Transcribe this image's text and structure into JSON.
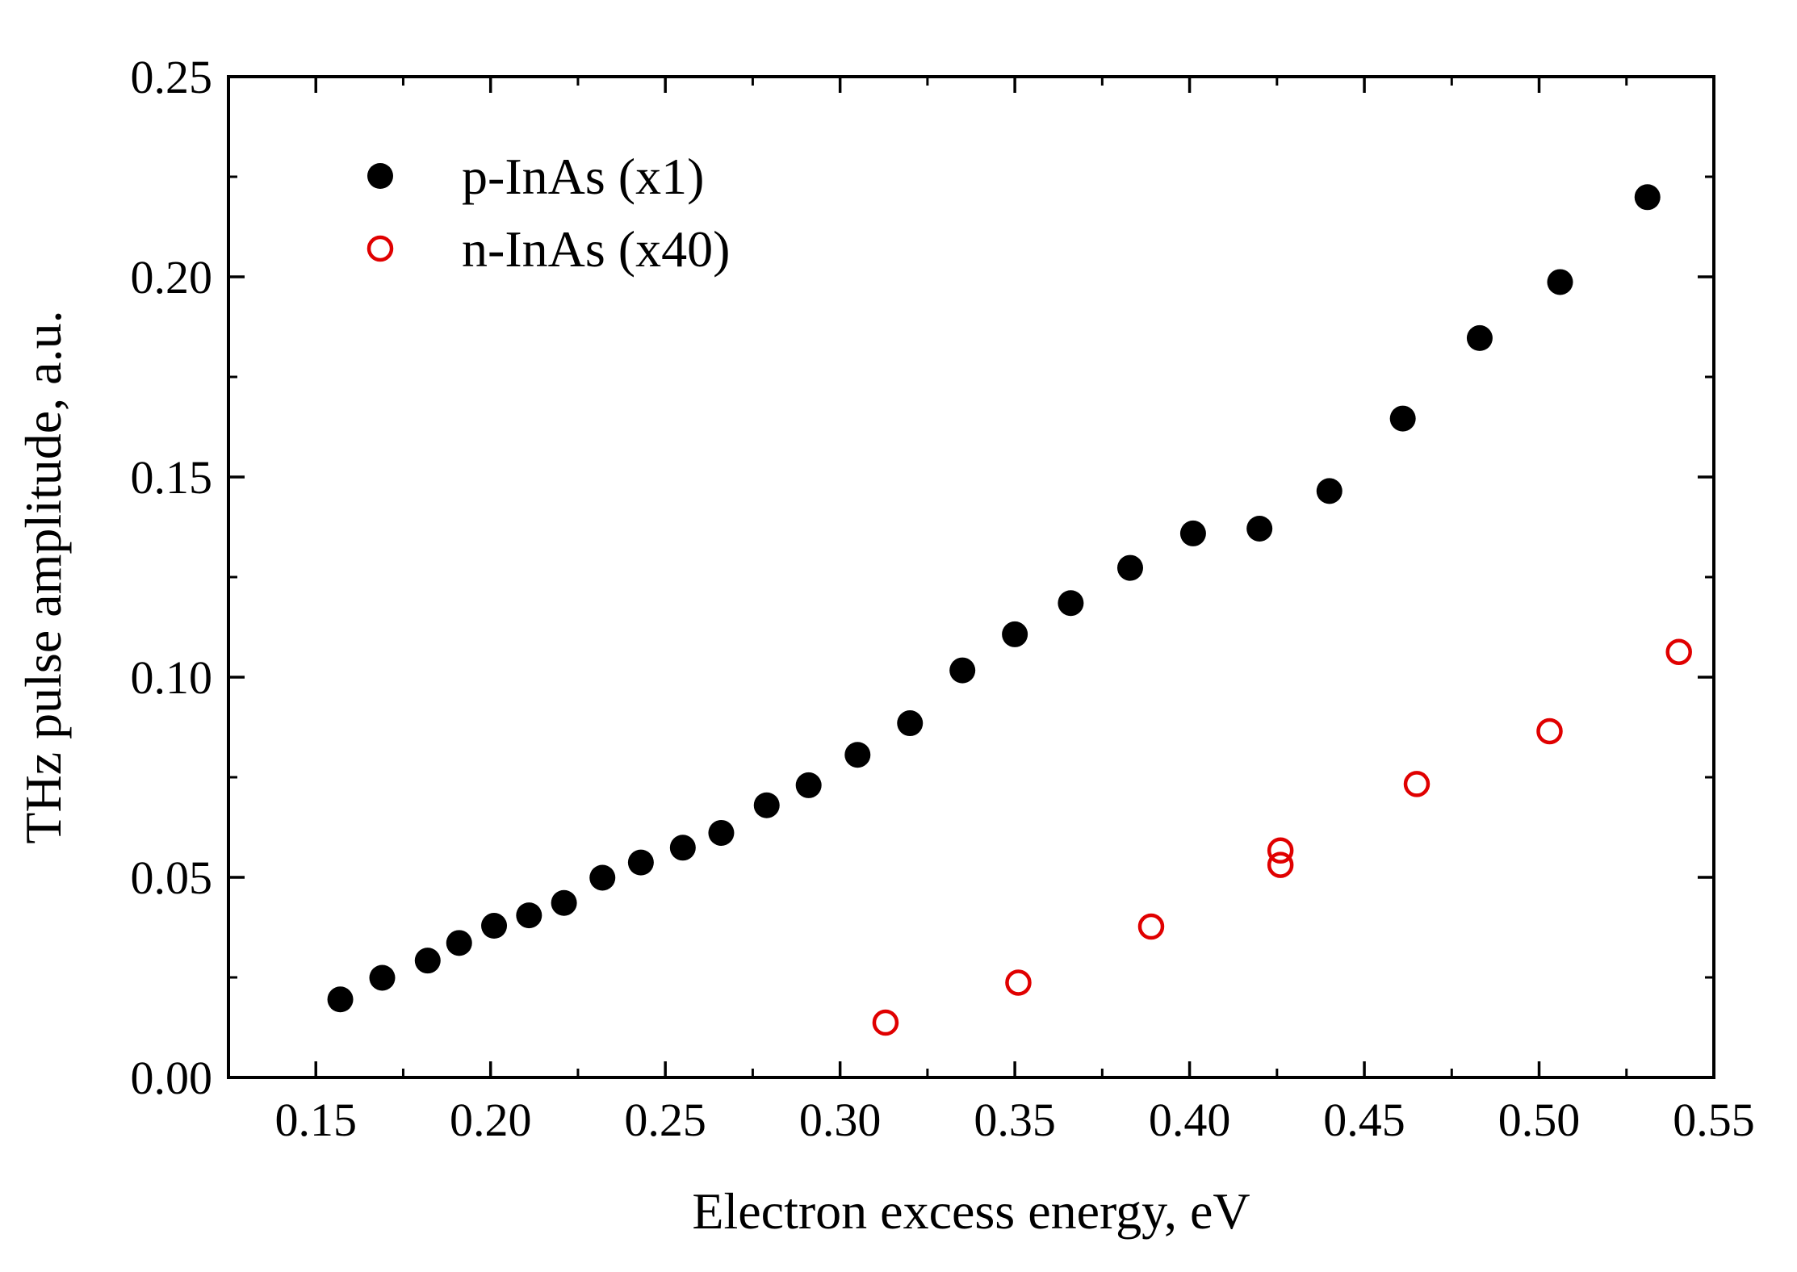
{
  "chart_data": {
    "type": "scatter",
    "xlabel": "Electron excess energy, eV",
    "ylabel": "THz pulse amplitude, a.u.",
    "xlim": [
      0.125,
      0.55
    ],
    "ylim": [
      0.0,
      0.25
    ],
    "xticks": [
      "0.15",
      "0.20",
      "0.25",
      "0.30",
      "0.35",
      "0.40",
      "0.45",
      "0.50",
      "0.55"
    ],
    "xtick_values": [
      0.15,
      0.2,
      0.25,
      0.3,
      0.35,
      0.4,
      0.45,
      0.5,
      0.55
    ],
    "yticks": [
      "0.00",
      "0.05",
      "0.10",
      "0.15",
      "0.20",
      "0.25"
    ],
    "ytick_values": [
      0.0,
      0.05,
      0.1,
      0.15,
      0.2,
      0.25
    ],
    "grid": false,
    "legend_position": "top-left",
    "series": [
      {
        "name": "p-InAs (x1)",
        "color": "#000000",
        "marker": "filled-circle",
        "x": [
          0.157,
          0.169,
          0.182,
          0.191,
          0.201,
          0.211,
          0.221,
          0.232,
          0.243,
          0.255,
          0.266,
          0.279,
          0.291,
          0.305,
          0.32,
          0.335,
          0.35,
          0.366,
          0.383,
          0.401,
          0.42,
          0.44,
          0.461,
          0.483,
          0.506,
          0.531
        ],
        "y": [
          0.0195,
          0.0249,
          0.0292,
          0.0336,
          0.0379,
          0.0405,
          0.0436,
          0.0499,
          0.0537,
          0.0574,
          0.0611,
          0.068,
          0.073,
          0.0806,
          0.0885,
          0.1017,
          0.1107,
          0.1185,
          0.1273,
          0.1359,
          0.1371,
          0.1465,
          0.1646,
          0.1847,
          0.1987,
          0.2199
        ]
      },
      {
        "name": "n-InAs (x40)",
        "color": "#e00000",
        "marker": "open-circle",
        "x": [
          0.313,
          0.351,
          0.389,
          0.426,
          0.426,
          0.465,
          0.503,
          0.54
        ],
        "y": [
          0.0137,
          0.0237,
          0.0377,
          0.0567,
          0.0531,
          0.0733,
          0.0865,
          0.1063
        ]
      }
    ]
  }
}
